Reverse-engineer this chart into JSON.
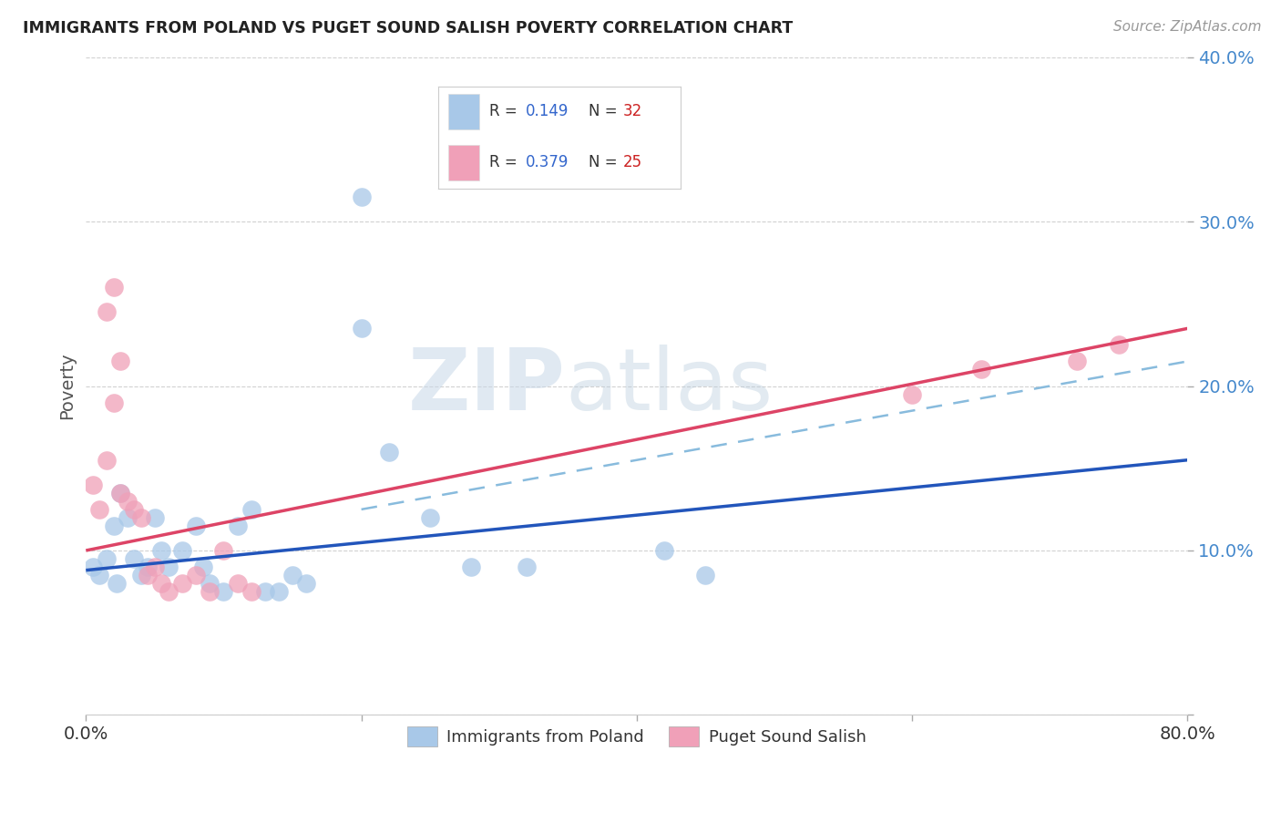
{
  "title": "IMMIGRANTS FROM POLAND VS PUGET SOUND SALISH POVERTY CORRELATION CHART",
  "source": "Source: ZipAtlas.com",
  "ylabel": "Poverty",
  "xlim": [
    0,
    0.8
  ],
  "ylim": [
    0,
    0.4
  ],
  "ytick_vals": [
    0.0,
    0.1,
    0.2,
    0.3,
    0.4
  ],
  "ytick_labels": [
    "",
    "10.0%",
    "20.0%",
    "30.0%",
    "40.0%"
  ],
  "xtick_vals": [
    0.0,
    0.2,
    0.4,
    0.6,
    0.8
  ],
  "xtick_labels": [
    "0.0%",
    "",
    "",
    "",
    "80.0%"
  ],
  "legend_r1": "R = 0.149",
  "legend_n1": "N = 32",
  "legend_r2": "R = 0.379",
  "legend_n2": "N = 25",
  "color_blue": "#a8c8e8",
  "color_pink": "#f0a0b8",
  "line_blue": "#2255bb",
  "line_pink": "#dd4466",
  "line_dash": "#88bbdd",
  "watermark_zip": "ZIP",
  "watermark_atlas": "atlas",
  "blue_x": [
    0.005,
    0.01,
    0.015,
    0.02,
    0.022,
    0.025,
    0.03,
    0.035,
    0.04,
    0.045,
    0.05,
    0.055,
    0.06,
    0.07,
    0.08,
    0.085,
    0.09,
    0.1,
    0.11,
    0.12,
    0.13,
    0.14,
    0.15,
    0.16,
    0.2,
    0.22,
    0.25,
    0.28,
    0.32,
    0.42,
    0.45,
    0.2
  ],
  "blue_y": [
    0.09,
    0.085,
    0.095,
    0.115,
    0.08,
    0.135,
    0.12,
    0.095,
    0.085,
    0.09,
    0.12,
    0.1,
    0.09,
    0.1,
    0.115,
    0.09,
    0.08,
    0.075,
    0.115,
    0.125,
    0.075,
    0.075,
    0.085,
    0.08,
    0.235,
    0.16,
    0.12,
    0.09,
    0.09,
    0.1,
    0.085,
    0.315
  ],
  "pink_x": [
    0.005,
    0.01,
    0.015,
    0.02,
    0.025,
    0.03,
    0.035,
    0.04,
    0.045,
    0.05,
    0.055,
    0.06,
    0.07,
    0.08,
    0.09,
    0.1,
    0.11,
    0.12,
    0.015,
    0.02,
    0.025,
    0.6,
    0.65,
    0.72,
    0.75
  ],
  "pink_y": [
    0.14,
    0.125,
    0.155,
    0.19,
    0.135,
    0.13,
    0.125,
    0.12,
    0.085,
    0.09,
    0.08,
    0.075,
    0.08,
    0.085,
    0.075,
    0.1,
    0.08,
    0.075,
    0.245,
    0.26,
    0.215,
    0.195,
    0.21,
    0.215,
    0.225
  ],
  "blue_line_x0": 0.0,
  "blue_line_x1": 0.8,
  "blue_line_y0": 0.088,
  "blue_line_y1": 0.155,
  "pink_line_x0": 0.0,
  "pink_line_x1": 0.8,
  "pink_line_y0": 0.1,
  "pink_line_y1": 0.235,
  "dash_line_x0": 0.2,
  "dash_line_x1": 0.8,
  "dash_line_y0": 0.125,
  "dash_line_y1": 0.215
}
